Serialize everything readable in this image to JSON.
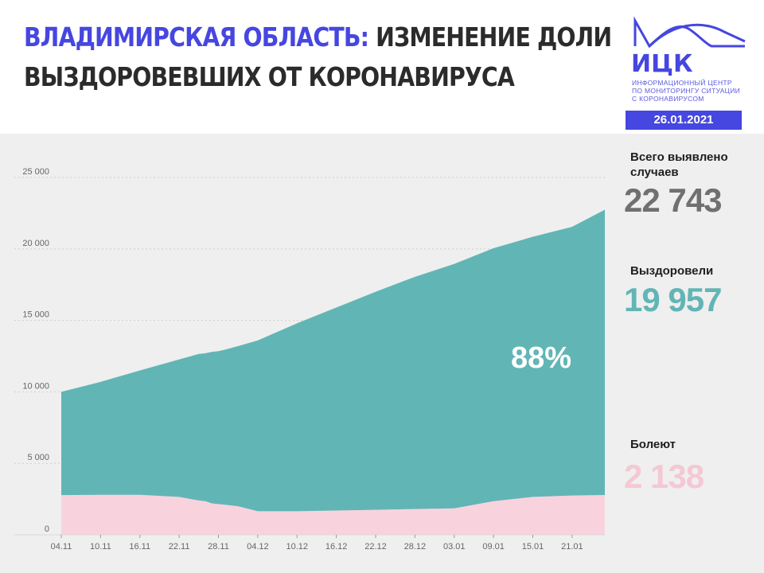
{
  "title": {
    "accent": "ВЛАДИМИРСКАЯ ОБЛАСТЬ:",
    "line1_rest": " ИЗМЕНЕНИЕ ДОЛИ",
    "line2": "ВЫЗДОРОВЕВШИХ ОТ КОРОНАВИРУСА"
  },
  "logo": {
    "name": "ИЦК",
    "lines": [
      "ИНФОРМАЦИОННЫЙ ЦЕНТР",
      "ПО МОНИТОРИНГУ СИТУАЦИИ",
      "С КОРОНАВИРУСОМ"
    ]
  },
  "date": "26.01.2021",
  "stats": {
    "total_label_1": "Всего выявлено",
    "total_label_2": "случаев",
    "total_value": "22 743",
    "recovered_label": "Выздоровели",
    "recovered_value": "19 957",
    "sick_label": "Болеют",
    "sick_value": "2 138"
  },
  "colors": {
    "accent": "#4646e0",
    "recovered": "#62b5b5",
    "sick": "#f8d3de",
    "total_value": "#707070",
    "recovered_value": "#62b5b5",
    "sick_value": "#f4c8d4"
  },
  "chart_data": {
    "type": "area",
    "stacked": true,
    "annotation": "88%",
    "ylim": [
      0,
      25000
    ],
    "y_ticks": [
      "0",
      "5 000",
      "10 000",
      "15 000",
      "20 000",
      "25 000"
    ],
    "x_tick_labels": [
      "04.11",
      "10.11",
      "16.11",
      "22.11",
      "28.11",
      "04.12",
      "10.12",
      "16.12",
      "22.12",
      "28.12",
      "03.01",
      "09.01",
      "15.01",
      "21.01"
    ],
    "grid": "horizontal dotted",
    "x": [
      "04.11",
      "10.11",
      "16.11",
      "22.11",
      "25.11",
      "26.11",
      "27.11",
      "28.11",
      "29.11",
      "01.12",
      "04.12",
      "10.12",
      "16.12",
      "22.12",
      "28.12",
      "03.01",
      "09.01",
      "15.01",
      "21.01",
      "26.01"
    ],
    "series": [
      {
        "values": [
          2780,
          2800,
          2800,
          2650,
          2400,
          2350,
          2200,
          2150,
          2100,
          2000,
          1650,
          1650,
          1700,
          1750,
          1800,
          1850,
          2350,
          2650,
          2750,
          2786
        ]
      },
      {
        "values": [
          7220,
          7900,
          8700,
          9620,
          10250,
          10350,
          10600,
          10700,
          10850,
          11200,
          11950,
          13150,
          14200,
          15250,
          16250,
          17100,
          17700,
          18200,
          18800,
          19957
        ]
      }
    ],
    "totals": [
      10000,
      10700,
      11500,
      12270,
      12650,
      12700,
      12800,
      12850,
      12950,
      13200,
      13600,
      14800,
      15900,
      17000,
      18050,
      18950,
      20050,
      20850,
      21550,
      22743
    ]
  }
}
